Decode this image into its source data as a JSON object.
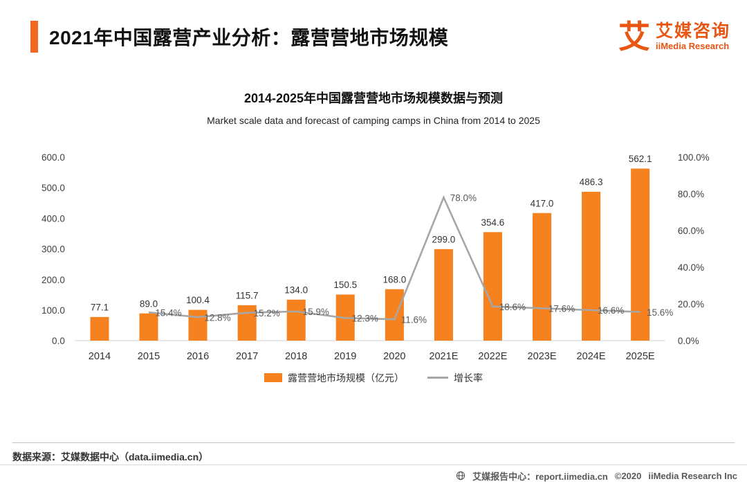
{
  "header": {
    "title": "2021年中国露营产业分析：露营营地市场规模"
  },
  "brand": {
    "logo_glyph": "艾",
    "name_cn": "艾媒咨询",
    "name_en": "iiMedia Research",
    "accent": "#E95513"
  },
  "chart_data": {
    "type": "bar+line",
    "title": "2014-2025年中国露营营地市场规模数据与预测",
    "subtitle": "Market scale data and forecast of camping camps in China from 2014 to 2025",
    "categories": [
      "2014",
      "2015",
      "2016",
      "2017",
      "2018",
      "2019",
      "2020",
      "2021E",
      "2022E",
      "2023E",
      "2024E",
      "2025E"
    ],
    "series": [
      {
        "name": "露营营地市场规模（亿元）",
        "type": "bar",
        "axis": "left",
        "color": "#F5821F",
        "values": [
          77.1,
          89.0,
          100.4,
          115.7,
          134.0,
          150.5,
          168.0,
          299.0,
          354.6,
          417.0,
          486.3,
          562.1
        ]
      },
      {
        "name": "增长率",
        "type": "line",
        "axis": "right",
        "color": "#A6A6A6",
        "values": [
          null,
          15.4,
          12.8,
          15.2,
          15.9,
          12.3,
          11.6,
          78.0,
          18.6,
          17.6,
          16.6,
          15.6
        ]
      }
    ],
    "left_axis": {
      "min": 0,
      "max": 600,
      "step": 100
    },
    "right_axis": {
      "min": 0,
      "max": 100,
      "step": 20,
      "suffix": "%"
    },
    "grid": false,
    "legend_position": "bottom"
  },
  "source": {
    "text": "数据来源：艾媒数据中心（data.iimedia.cn）"
  },
  "footer": {
    "report_center": "艾媒报告中心：report.iimedia.cn",
    "copyright": "©2020",
    "company": "iiMedia Research Inc"
  }
}
